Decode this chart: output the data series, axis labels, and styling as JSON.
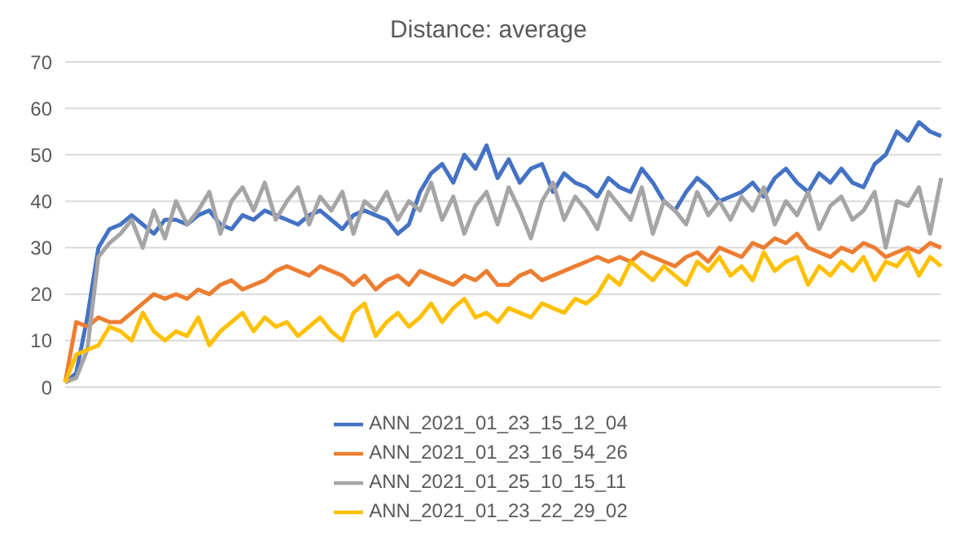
{
  "chart_data": {
    "type": "line",
    "title": "Distance: average",
    "categories": [
      null,
      null,
      null,
      null,
      null,
      null,
      null,
      null,
      null,
      null,
      null,
      null,
      null,
      null,
      null,
      null,
      null,
      null,
      null,
      null,
      null,
      null,
      null,
      null,
      null,
      null,
      null,
      null,
      null,
      null,
      null,
      null,
      null,
      null,
      null,
      null,
      null,
      null,
      null,
      null,
      null,
      null,
      null,
      null,
      null,
      null,
      null,
      null,
      null,
      null,
      null,
      null,
      null,
      null,
      null,
      null,
      null,
      null,
      null,
      null,
      null,
      null,
      null,
      null,
      null,
      null,
      null,
      null,
      null,
      null,
      null,
      null,
      null,
      null,
      null,
      null,
      null,
      null,
      null,
      null
    ],
    "series": [
      {
        "name": "ANN_2021_01_23_15_12_04",
        "color": "#4472c4",
        "values": [
          1,
          3,
          15,
          30,
          34,
          35,
          37,
          35,
          33,
          36,
          36,
          35,
          37,
          38,
          35,
          34,
          37,
          36,
          38,
          37,
          36,
          35,
          37,
          38,
          36,
          34,
          37,
          38,
          37,
          36,
          33,
          35,
          42,
          46,
          48,
          44,
          50,
          47,
          52,
          45,
          49,
          44,
          47,
          48,
          42,
          46,
          44,
          43,
          41,
          45,
          43,
          42,
          47,
          44,
          40,
          38,
          42,
          45,
          43,
          40,
          41,
          42,
          44,
          41,
          45,
          47,
          44,
          42,
          46,
          44,
          47,
          44,
          43,
          48,
          50,
          55,
          53,
          57,
          55,
          54
        ]
      },
      {
        "name": "ANN_2021_01_23_16_54_26",
        "color": "#ed7d31",
        "values": [
          1,
          14,
          13,
          15,
          14,
          14,
          16,
          18,
          20,
          19,
          20,
          19,
          21,
          20,
          22,
          23,
          21,
          22,
          23,
          25,
          26,
          25,
          24,
          26,
          25,
          24,
          22,
          24,
          21,
          23,
          24,
          22,
          25,
          24,
          23,
          22,
          24,
          23,
          25,
          22,
          22,
          24,
          25,
          23,
          24,
          25,
          26,
          27,
          28,
          27,
          28,
          27,
          29,
          28,
          27,
          26,
          28,
          29,
          27,
          30,
          29,
          28,
          31,
          30,
          32,
          31,
          33,
          30,
          29,
          28,
          30,
          29,
          31,
          30,
          28,
          29,
          30,
          29,
          31,
          30
        ]
      },
      {
        "name": "ANN_2021_01_25_10_15_11",
        "color": "#a5a5a5",
        "values": [
          1,
          2,
          8,
          28,
          31,
          33,
          36,
          30,
          38,
          32,
          40,
          35,
          38,
          42,
          33,
          40,
          43,
          38,
          44,
          36,
          40,
          43,
          35,
          41,
          38,
          42,
          33,
          40,
          38,
          42,
          36,
          40,
          38,
          44,
          36,
          41,
          33,
          39,
          42,
          35,
          43,
          38,
          32,
          40,
          44,
          36,
          41,
          38,
          34,
          42,
          39,
          36,
          43,
          33,
          40,
          38,
          35,
          42,
          37,
          40,
          36,
          41,
          38,
          43,
          35,
          40,
          37,
          42,
          34,
          39,
          41,
          36,
          38,
          42,
          30,
          40,
          39,
          43,
          33,
          45
        ]
      },
      {
        "name": "ANN_2021_01_23_22_29_02",
        "color": "#ffc000",
        "values": [
          1,
          7,
          8,
          9,
          13,
          12,
          10,
          16,
          12,
          10,
          12,
          11,
          15,
          9,
          12,
          14,
          16,
          12,
          15,
          13,
          14,
          11,
          13,
          15,
          12,
          10,
          16,
          18,
          11,
          14,
          16,
          13,
          15,
          18,
          14,
          17,
          19,
          15,
          16,
          14,
          17,
          16,
          15,
          18,
          17,
          16,
          19,
          18,
          20,
          24,
          22,
          27,
          25,
          23,
          26,
          24,
          22,
          27,
          25,
          28,
          24,
          26,
          23,
          29,
          25,
          27,
          28,
          22,
          26,
          24,
          27,
          25,
          28,
          23,
          27,
          26,
          29,
          24,
          28,
          26
        ]
      }
    ],
    "ylim": [
      0,
      70
    ],
    "yticks": [
      0,
      10,
      20,
      30,
      40,
      50,
      60,
      70
    ],
    "grid": "y",
    "legend": "bottom",
    "marker": "none",
    "line_style": "solid"
  }
}
